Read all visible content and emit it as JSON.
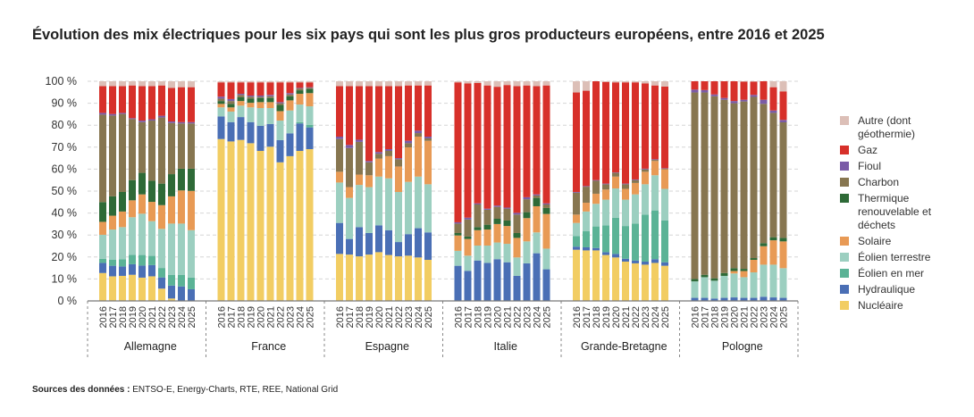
{
  "title": "Évolution des mix électriques pour les six pays qui sont les plus gros producteurs européens, entre 2016 et 2025",
  "source": {
    "label": "Sources des données :",
    "text": "ENTSO-E, Energy-Charts, RTE, REE, National Grid"
  },
  "chart_data": {
    "type": "bar",
    "stacked": true,
    "ylim": [
      0,
      100
    ],
    "yticks": [
      "0 %",
      "10 %",
      "20 %",
      "30 %",
      "40 %",
      "50 %",
      "60 %",
      "70 %",
      "80 %",
      "90 %",
      "100 %"
    ],
    "grid": true,
    "legend_placement": "right",
    "years": [
      "2016",
      "2017",
      "2018",
      "2019",
      "2020",
      "2021",
      "2022",
      "2023",
      "2024",
      "2025"
    ],
    "series_order": [
      "nucleaire",
      "hydraulique",
      "eolien_mer",
      "eolien_terrestre",
      "solaire",
      "thermique",
      "charbon",
      "fioul",
      "gaz",
      "autre"
    ],
    "legend": [
      {
        "key": "autre",
        "name": "Autre (dont géothermie)",
        "color": "#dcbfb7"
      },
      {
        "key": "gaz",
        "name": "Gaz",
        "color": "#d7302a"
      },
      {
        "key": "fioul",
        "name": "Fioul",
        "color": "#7a5ba6"
      },
      {
        "key": "charbon",
        "name": "Charbon",
        "color": "#877650"
      },
      {
        "key": "thermique",
        "name": "Thermique renouvelable et déchets",
        "color": "#2e6a37"
      },
      {
        "key": "solaire",
        "name": "Solaire",
        "color": "#e89a55"
      },
      {
        "key": "eolien_terrestre",
        "name": "Éolien terrestre",
        "color": "#9ccfc0"
      },
      {
        "key": "eolien_mer",
        "name": "Éolien en mer",
        "color": "#5bb396"
      },
      {
        "key": "hydraulique",
        "name": "Hydraulique",
        "color": "#4a6fb5"
      },
      {
        "key": "nucleaire",
        "name": "Nucléaire",
        "color": "#f2cd63"
      }
    ],
    "countries": [
      {
        "name": "Allemagne",
        "values": {
          "nucleaire": [
            12.7,
            11.2,
            11.4,
            11.9,
            10.6,
            11.2,
            5.6,
            1.1,
            0,
            0
          ],
          "hydraulique": [
            4.6,
            4.8,
            4.3,
            4.8,
            5.5,
            5.1,
            5.1,
            5.9,
            6.6,
            5.3
          ],
          "eolien_mer": [
            1.9,
            2.7,
            3.3,
            4.3,
            4.8,
            4.2,
            4.3,
            4.9,
            5.3,
            5.3
          ],
          "eolien_terrestre": [
            10.9,
            13.8,
            14.6,
            17.1,
            18.8,
            15.8,
            17.8,
            23.3,
            23.3,
            21.6
          ],
          "solaire": [
            5.9,
            6.3,
            7.1,
            7.7,
            8.8,
            8.8,
            10.8,
            12.4,
            15.1,
            17.9
          ],
          "thermique": [
            9.0,
            8.8,
            8.9,
            9.2,
            9.8,
            9.6,
            9.8,
            10.1,
            9.9,
            10.1
          ],
          "charbon": [
            39.8,
            36.8,
            35.5,
            27.8,
            23.1,
            27.4,
            30.1,
            23.3,
            20.6,
            20.6
          ],
          "fioul": [
            0.8,
            0.7,
            0.5,
            0.4,
            0.7,
            0.6,
            0.8,
            0.7,
            0.6,
            0.6
          ],
          "gaz": [
            12.2,
            12.7,
            12.2,
            14.9,
            15.7,
            15.1,
            13.8,
            15.3,
            15.9,
            15.9
          ],
          "autre": [
            2.2,
            2.2,
            2.2,
            1.9,
            2.2,
            2.2,
            1.9,
            3.0,
            2.7,
            2.7
          ]
        }
      },
      {
        "name": "France",
        "values": {
          "nucleaire": [
            73.7,
            72.6,
            73.3,
            71.8,
            68.3,
            70.2,
            63.1,
            65.9,
            68.3,
            69.1
          ],
          "hydraulique": [
            10.3,
            8.8,
            10.4,
            9.6,
            11.4,
            10.3,
            10.1,
            10.4,
            12.5,
            9.9
          ],
          "eolien_mer": [
            0,
            0,
            0,
            0,
            0,
            0,
            0,
            0,
            0.6,
            1.1
          ],
          "eolien_terrestre": [
            4.1,
            4.8,
            5.2,
            6.7,
            8.1,
            7.3,
            8.9,
            10.4,
            8.0,
            8.5
          ],
          "solaire": [
            1.6,
            1.9,
            2.1,
            2.1,
            2.7,
            2.7,
            4.3,
            4.6,
            4.9,
            6.0
          ],
          "thermique": [
            1.3,
            1.6,
            1.7,
            1.9,
            1.9,
            1.9,
            2.8,
            1.9,
            1.6,
            1.9
          ],
          "charbon": [
            1.1,
            1.3,
            1.1,
            0.9,
            0.5,
            0.8,
            0.8,
            0.8,
            0.8,
            0.5
          ],
          "fioul": [
            0.9,
            0.9,
            0.5,
            0.5,
            0.6,
            0.6,
            0.5,
            0.6,
            0.3,
            0.3
          ],
          "gaz": [
            6.5,
            7.6,
            5.2,
            6.0,
            6.0,
            5.7,
            9.0,
            4.9,
            2.5,
            2.2
          ],
          "autre": [
            0.5,
            0.5,
            0.5,
            0.5,
            0.5,
            0.5,
            0.5,
            0.5,
            0.5,
            0.5
          ]
        }
      },
      {
        "name": "Espagne",
        "values": {
          "nucleaire": [
            21.4,
            21.1,
            20.3,
            21.1,
            22.2,
            20.9,
            20.3,
            20.6,
            19.8,
            18.7
          ],
          "hydraulique": [
            14.1,
            7.1,
            13.3,
            9.8,
            12.2,
            11.3,
            6.5,
            9.8,
            13.3,
            12.5
          ],
          "eolien_mer": [
            0,
            0,
            0,
            0,
            0,
            0,
            0,
            0,
            0,
            0
          ],
          "eolien_terrestre": [
            18.4,
            18.7,
            19.2,
            20.9,
            22.2,
            23.6,
            22.8,
            23.8,
            23.5,
            21.9
          ],
          "solaire": [
            4.9,
            4.9,
            4.7,
            5.4,
            8.2,
            10.1,
            11.6,
            15.7,
            18.2,
            19.8
          ],
          "thermique": [
            0,
            0,
            0,
            0,
            0,
            0,
            0,
            0,
            0,
            0
          ],
          "charbon": [
            14.9,
            17.8,
            14.9,
            5.9,
            2.2,
            2.4,
            3.3,
            1.9,
            1.6,
            1.1
          ],
          "fioul": [
            1.1,
            1.4,
            1.0,
            0.6,
            0.8,
            0.8,
            0.5,
            1.1,
            1.1,
            0.8
          ],
          "gaz": [
            23.0,
            26.8,
            24.4,
            34.1,
            30.0,
            28.7,
            32.8,
            25.2,
            20.6,
            23.3
          ],
          "autre": [
            2.2,
            2.2,
            2.2,
            2.2,
            2.2,
            2.2,
            2.2,
            1.9,
            1.9,
            1.9
          ]
        }
      },
      {
        "name": "Italie",
        "values": {
          "nucleaire": [
            0,
            0,
            0,
            0,
            0,
            0,
            0,
            0,
            0,
            0
          ],
          "hydraulique": [
            16.0,
            13.7,
            18.4,
            17.3,
            19.0,
            17.6,
            11.4,
            17.1,
            21.7,
            14.4
          ],
          "eolien_mer": [
            0,
            0,
            0,
            0,
            0,
            0,
            0,
            0,
            0,
            0
          ],
          "eolien_terrestre": [
            6.8,
            6.9,
            6.8,
            7.9,
            7.6,
            8.4,
            8.4,
            10.0,
            9.5,
            9.4
          ],
          "solaire": [
            7.0,
            7.6,
            7.0,
            7.3,
            8.4,
            8.1,
            8.9,
            10.6,
            11.9,
            15.8
          ],
          "thermique": [
            1.1,
            1.1,
            1.4,
            2.2,
            2.4,
            2.5,
            2.2,
            2.7,
            3.8,
            2.7
          ],
          "charbon": [
            4.3,
            7.8,
            10.3,
            6.8,
            5.4,
            5.4,
            8.4,
            5.9,
            1.1,
            1.6
          ],
          "fioul": [
            0.6,
            0.8,
            0.5,
            0.5,
            0.6,
            0.5,
            0.8,
            0.9,
            0.5,
            0.5
          ],
          "gaz": [
            63.7,
            61.1,
            54.8,
            56.1,
            54.1,
            55.8,
            57.7,
            50.9,
            49.3,
            53.7
          ],
          "autre": [
            0.5,
            1.0,
            0.8,
            1.9,
            2.5,
            1.7,
            2.2,
            1.9,
            2.2,
            1.9
          ]
        }
      },
      {
        "name": "Grande-Bretagne",
        "values": {
          "nucleaire": [
            23.3,
            23.0,
            23.0,
            20.9,
            19.8,
            17.9,
            17.1,
            16.5,
            17.3,
            16.0
          ],
          "hydraulique": [
            1.4,
            1.4,
            1.1,
            1.3,
            1.6,
            1.3,
            1.3,
            1.4,
            1.7,
            1.6
          ],
          "eolien_mer": [
            4.8,
            7.3,
            9.8,
            12.2,
            16.5,
            14.9,
            16.8,
            21.4,
            22.2,
            19.0
          ],
          "eolien_terrestre": [
            6.0,
            9.0,
            10.3,
            11.7,
            13.3,
            12.0,
            13.3,
            13.8,
            16.0,
            14.4
          ],
          "solaire": [
            3.8,
            4.0,
            4.6,
            4.6,
            5.4,
            4.9,
            5.2,
            5.7,
            6.5,
            8.9
          ],
          "thermique": [
            0,
            0,
            0,
            0,
            0,
            0,
            0,
            0,
            0,
            0
          ],
          "charbon": [
            10.0,
            7.3,
            5.9,
            2.4,
            1.7,
            2.1,
            1.3,
            1.1,
            0.5,
            0.3
          ],
          "fioul": [
            0.3,
            0.3,
            0.3,
            0.3,
            0.2,
            0.3,
            0.3,
            0.3,
            0.3,
            0.2
          ],
          "gaz": [
            45.3,
            43.4,
            45.0,
            46.3,
            41.0,
            46.1,
            44.2,
            38.8,
            33.6,
            37.2
          ],
          "autre": [
            5.1,
            4.3,
            0,
            0.3,
            0.5,
            0.5,
            0.5,
            1.0,
            1.9,
            2.4
          ]
        }
      },
      {
        "name": "Pologne",
        "values": {
          "nucleaire": [
            0,
            0,
            0,
            0,
            0,
            0,
            0,
            0,
            0,
            0
          ],
          "hydraulique": [
            1.4,
            1.4,
            1.1,
            1.4,
            1.6,
            1.4,
            1.4,
            1.9,
            1.6,
            1.4
          ],
          "eolien_mer": [
            0,
            0,
            0,
            0,
            0,
            0,
            0,
            0,
            0,
            0
          ],
          "eolien_terrestre": [
            7.5,
            9.4,
            8.1,
            10.0,
            10.9,
            9.4,
            11.6,
            14.6,
            14.9,
            13.5
          ],
          "solaire": [
            0,
            0,
            0,
            0,
            1.1,
            2.8,
            5.7,
            8.4,
            11.1,
            12.2
          ],
          "thermique": [
            1.1,
            1.1,
            1.1,
            1.3,
            1.3,
            1.0,
            0.8,
            1.4,
            1.4,
            1.6
          ],
          "charbon": [
            84.9,
            83.0,
            82.9,
            78.9,
            75.1,
            76.2,
            73.4,
            63.4,
            56.6,
            52.6
          ],
          "fioul": [
            1.3,
            1.1,
            0.8,
            0.8,
            1.0,
            0.8,
            0.9,
            1.9,
            1.1,
            1.1
          ],
          "gaz": [
            3.8,
            4.0,
            6.0,
            7.6,
            9.0,
            8.2,
            6.0,
            8.4,
            10.6,
            13.0
          ],
          "autre": [
            0,
            0,
            0,
            0,
            0,
            0.2,
            0.2,
            0,
            2.7,
            4.6
          ]
        }
      }
    ]
  }
}
